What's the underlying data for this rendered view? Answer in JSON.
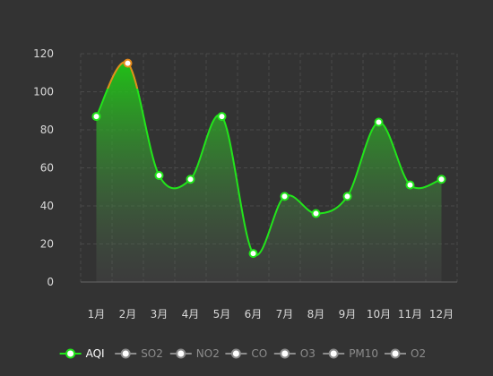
{
  "chart_data": {
    "type": "area",
    "categories": [
      "1月",
      "2月",
      "3月",
      "4月",
      "5月",
      "6月",
      "7月",
      "8月",
      "9月",
      "10月",
      "11月",
      "12月"
    ],
    "series": [
      {
        "name": "AQI",
        "values": [
          87,
          115,
          56,
          54,
          87,
          15,
          45,
          36,
          45,
          84,
          51,
          54
        ],
        "active": true
      },
      {
        "name": "SO2",
        "active": false
      },
      {
        "name": "NO2",
        "active": false
      },
      {
        "name": "CO",
        "active": false
      },
      {
        "name": "O3",
        "active": false
      },
      {
        "name": "PM10",
        "active": false
      },
      {
        "name": "O2",
        "active": false
      }
    ],
    "ylim": [
      0,
      120
    ],
    "yticks": [
      0,
      20,
      40,
      60,
      80,
      100,
      120
    ],
    "grid": true,
    "legend_position": "bottom",
    "colors": {
      "background": "#333333",
      "line": "#22e51b",
      "line_high": "#e58a1b",
      "fill_top": "#1fc715",
      "inactive": "#8c8c8c",
      "tick_text": "#d9d9d9",
      "grid": "#4a4a4a"
    }
  }
}
